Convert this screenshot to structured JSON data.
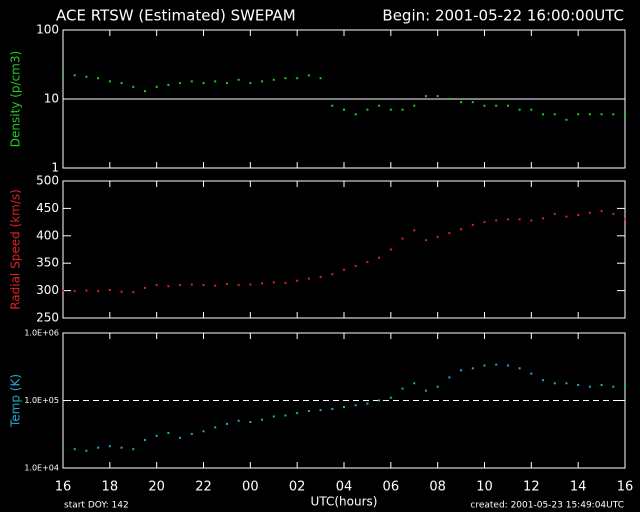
{
  "title": "ACE RTSW (Estimated) SWEPAM",
  "begin": "Begin: 2001-05-22 16:00:00UTC",
  "footer": {
    "start_doy": "start DOY: 142",
    "x_label": "UTC(hours)",
    "created": "created: 2001-05-23 15:49:04UTC"
  },
  "chart_data": [
    {
      "type": "scatter",
      "y_label": "Density (p/cm3)",
      "color": "#22cc22",
      "log_scale": true,
      "ylim": [
        1,
        100
      ],
      "yticks": [
        1,
        10,
        100
      ],
      "ref_line": 10,
      "ref_style": "solid",
      "xlim": [
        16,
        40
      ],
      "x": [
        16,
        16.5,
        17,
        17.5,
        18,
        18.5,
        19,
        19.5,
        20,
        20.5,
        21,
        21.5,
        22,
        22.5,
        23,
        23.5,
        24,
        24.5,
        25,
        25.5,
        26,
        26.5,
        27,
        27.5,
        28,
        28.5,
        29,
        29.5,
        30,
        30.5,
        31,
        31.5,
        32,
        32.5,
        33,
        33.5,
        34,
        34.5,
        35,
        35.5,
        36,
        36.5,
        37,
        37.5,
        38,
        38.5,
        39,
        39.5,
        40
      ],
      "values": [
        22,
        22,
        21,
        20,
        18,
        17,
        15,
        13,
        15,
        16,
        17,
        18,
        17,
        18,
        17,
        19,
        17,
        18,
        19,
        20,
        20,
        22,
        20,
        8,
        7,
        6,
        7,
        8,
        7,
        7,
        8,
        11,
        11,
        10,
        9,
        9,
        8,
        8,
        8,
        7,
        7,
        6,
        6,
        5,
        6,
        6,
        6,
        6,
        6
      ]
    },
    {
      "type": "scatter",
      "y_label": "Radial Speed (km/s)",
      "color": "#dd2222",
      "log_scale": false,
      "ylim": [
        250,
        500
      ],
      "yticks": [
        250,
        300,
        350,
        400,
        450,
        500
      ],
      "xlim": [
        16,
        40
      ],
      "x": [
        16,
        16.5,
        17,
        17.5,
        18,
        18.5,
        19,
        19.5,
        20,
        20.5,
        21,
        21.5,
        22,
        22.5,
        23,
        23.5,
        24,
        24.5,
        25,
        25.5,
        26,
        26.5,
        27,
        27.5,
        28,
        28.5,
        29,
        29.5,
        30,
        30.5,
        31,
        31.5,
        32,
        32.5,
        33,
        33.5,
        34,
        34.5,
        35,
        35.5,
        36,
        36.5,
        37,
        37.5,
        38,
        38.5,
        39,
        39.5,
        40
      ],
      "values": [
        300,
        299,
        300,
        299,
        301,
        298,
        297,
        305,
        310,
        308,
        310,
        311,
        310,
        309,
        312,
        310,
        311,
        313,
        315,
        314,
        318,
        322,
        325,
        330,
        338,
        345,
        352,
        360,
        375,
        395,
        410,
        392,
        398,
        405,
        412,
        420,
        425,
        428,
        430,
        430,
        428,
        432,
        440,
        435,
        438,
        442,
        445,
        440,
        430
      ]
    },
    {
      "type": "scatter",
      "y_label": "Temp (K)",
      "color": "#22aacc",
      "log_scale": true,
      "ylim": [
        10000,
        1000000
      ],
      "yticks": [
        {
          "value": 10000,
          "label": "1.0E+04"
        },
        {
          "value": 100000,
          "label": "1.0E+05"
        },
        {
          "value": 1000000,
          "label": "1.0E+06"
        }
      ],
      "ref_line": 100000,
      "ref_style": "dashed",
      "xlim": [
        16,
        40
      ],
      "xticks": [
        16,
        18,
        20,
        22,
        {
          "value": 24,
          "label": "00"
        },
        {
          "value": 26,
          "label": "02"
        },
        {
          "value": 28,
          "label": "04"
        },
        {
          "value": 30,
          "label": "06"
        },
        {
          "value": 32,
          "label": "08"
        },
        {
          "value": 34,
          "label": "10"
        },
        {
          "value": 36,
          "label": "12"
        },
        {
          "value": 38,
          "label": "14"
        },
        {
          "value": 40,
          "label": "16"
        }
      ],
      "x": [
        16,
        16.5,
        17,
        17.5,
        18,
        18.5,
        19,
        19.5,
        20,
        20.5,
        21,
        21.5,
        22,
        22.5,
        23,
        23.5,
        24,
        24.5,
        25,
        25.5,
        26,
        26.5,
        27,
        27.5,
        28,
        28.5,
        29,
        29.5,
        30,
        30.5,
        31,
        31.5,
        32,
        32.5,
        33,
        33.5,
        34,
        34.5,
        35,
        35.5,
        36,
        36.5,
        37,
        37.5,
        38,
        38.5,
        39,
        39.5,
        40
      ],
      "values": [
        20000,
        19000,
        18000,
        20000,
        21000,
        20000,
        19000,
        26000,
        30000,
        33000,
        28000,
        32000,
        35000,
        40000,
        45000,
        50000,
        48000,
        52000,
        58000,
        60000,
        65000,
        70000,
        72000,
        75000,
        80000,
        85000,
        90000,
        100000,
        110000,
        150000,
        180000,
        140000,
        160000,
        220000,
        280000,
        300000,
        330000,
        340000,
        330000,
        300000,
        250000,
        200000,
        180000,
        180000,
        170000,
        160000,
        170000,
        160000,
        170000
      ]
    }
  ]
}
